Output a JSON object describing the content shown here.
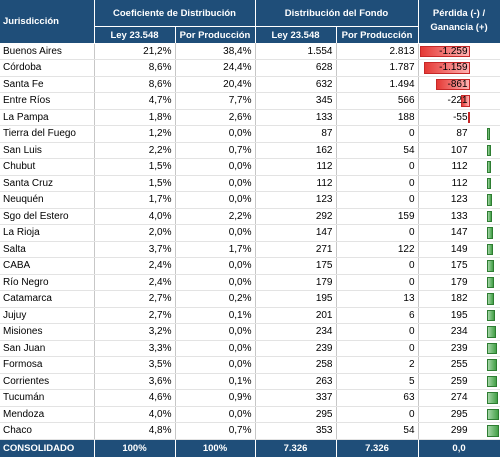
{
  "headers": {
    "jurisdiccion": "Jurisdicción",
    "coeficiente": "Coeficiente de Distribución",
    "distribucion": "Distribución del Fondo",
    "perdida_line1": "Pérdida (-) /",
    "perdida_line2": "Ganancia (+)",
    "ley": "Ley 23.548",
    "produccion": "Por Producción"
  },
  "rows": [
    {
      "name": "Buenos Aires",
      "coef_ley": "21,2%",
      "coef_prod": "38,4%",
      "dist_ley": "1.554",
      "dist_prod": "2.813",
      "gp": "-1.259",
      "gp_value": -1259
    },
    {
      "name": "Córdoba",
      "coef_ley": "8,6%",
      "coef_prod": "24,4%",
      "dist_ley": "628",
      "dist_prod": "1.787",
      "gp": "-1.159",
      "gp_value": -1159
    },
    {
      "name": "Santa Fe",
      "coef_ley": "8,6%",
      "coef_prod": "20,4%",
      "dist_ley": "632",
      "dist_prod": "1.494",
      "gp": "-861",
      "gp_value": -861
    },
    {
      "name": "Entre Ríos",
      "coef_ley": "4,7%",
      "coef_prod": "7,7%",
      "dist_ley": "345",
      "dist_prod": "566",
      "gp": "-221",
      "gp_value": -221
    },
    {
      "name": "La Pampa",
      "coef_ley": "1,8%",
      "coef_prod": "2,6%",
      "dist_ley": "133",
      "dist_prod": "188",
      "gp": "-55",
      "gp_value": -55
    },
    {
      "name": "Tierra del Fuego",
      "coef_ley": "1,2%",
      "coef_prod": "0,0%",
      "dist_ley": "87",
      "dist_prod": "0",
      "gp": "87",
      "gp_value": 87
    },
    {
      "name": "San Luis",
      "coef_ley": "2,2%",
      "coef_prod": "0,7%",
      "dist_ley": "162",
      "dist_prod": "54",
      "gp": "107",
      "gp_value": 107
    },
    {
      "name": "Chubut",
      "coef_ley": "1,5%",
      "coef_prod": "0,0%",
      "dist_ley": "112",
      "dist_prod": "0",
      "gp": "112",
      "gp_value": 112
    },
    {
      "name": "Santa Cruz",
      "coef_ley": "1,5%",
      "coef_prod": "0,0%",
      "dist_ley": "112",
      "dist_prod": "0",
      "gp": "112",
      "gp_value": 112
    },
    {
      "name": "Neuquén",
      "coef_ley": "1,7%",
      "coef_prod": "0,0%",
      "dist_ley": "123",
      "dist_prod": "0",
      "gp": "123",
      "gp_value": 123
    },
    {
      "name": "Sgo del Estero",
      "coef_ley": "4,0%",
      "coef_prod": "2,2%",
      "dist_ley": "292",
      "dist_prod": "159",
      "gp": "133",
      "gp_value": 133
    },
    {
      "name": "La Rioja",
      "coef_ley": "2,0%",
      "coef_prod": "0,0%",
      "dist_ley": "147",
      "dist_prod": "0",
      "gp": "147",
      "gp_value": 147
    },
    {
      "name": "Salta",
      "coef_ley": "3,7%",
      "coef_prod": "1,7%",
      "dist_ley": "271",
      "dist_prod": "122",
      "gp": "149",
      "gp_value": 149
    },
    {
      "name": "CABA",
      "coef_ley": "2,4%",
      "coef_prod": "0,0%",
      "dist_ley": "175",
      "dist_prod": "0",
      "gp": "175",
      "gp_value": 175
    },
    {
      "name": "Río Negro",
      "coef_ley": "2,4%",
      "coef_prod": "0,0%",
      "dist_ley": "179",
      "dist_prod": "0",
      "gp": "179",
      "gp_value": 179
    },
    {
      "name": "Catamarca",
      "coef_ley": "2,7%",
      "coef_prod": "0,2%",
      "dist_ley": "195",
      "dist_prod": "13",
      "gp": "182",
      "gp_value": 182
    },
    {
      "name": "Jujuy",
      "coef_ley": "2,7%",
      "coef_prod": "0,1%",
      "dist_ley": "201",
      "dist_prod": "6",
      "gp": "195",
      "gp_value": 195
    },
    {
      "name": "Misiones",
      "coef_ley": "3,2%",
      "coef_prod": "0,0%",
      "dist_ley": "234",
      "dist_prod": "0",
      "gp": "234",
      "gp_value": 234
    },
    {
      "name": "San Juan",
      "coef_ley": "3,3%",
      "coef_prod": "0,0%",
      "dist_ley": "239",
      "dist_prod": "0",
      "gp": "239",
      "gp_value": 239
    },
    {
      "name": "Formosa",
      "coef_ley": "3,5%",
      "coef_prod": "0,0%",
      "dist_ley": "258",
      "dist_prod": "2",
      "gp": "255",
      "gp_value": 255
    },
    {
      "name": "Corrientes",
      "coef_ley": "3,6%",
      "coef_prod": "0,1%",
      "dist_ley": "263",
      "dist_prod": "5",
      "gp": "259",
      "gp_value": 259
    },
    {
      "name": "Tucumán",
      "coef_ley": "4,6%",
      "coef_prod": "0,9%",
      "dist_ley": "337",
      "dist_prod": "63",
      "gp": "274",
      "gp_value": 274
    },
    {
      "name": "Mendoza",
      "coef_ley": "4,0%",
      "coef_prod": "0,0%",
      "dist_ley": "295",
      "dist_prod": "0",
      "gp": "295",
      "gp_value": 295
    },
    {
      "name": "Chaco",
      "coef_ley": "4,8%",
      "coef_prod": "0,7%",
      "dist_ley": "353",
      "dist_prod": "54",
      "gp": "299",
      "gp_value": 299
    }
  ],
  "total": {
    "name": "CONSOLIDADO",
    "coef_ley": "100%",
    "coef_prod": "100%",
    "dist_ley": "7.326",
    "dist_prod": "7.326",
    "gp": "0,0"
  },
  "colors": {
    "header_bg": "#1f4e79",
    "negative": "#e53935",
    "positive": "#43a047"
  }
}
